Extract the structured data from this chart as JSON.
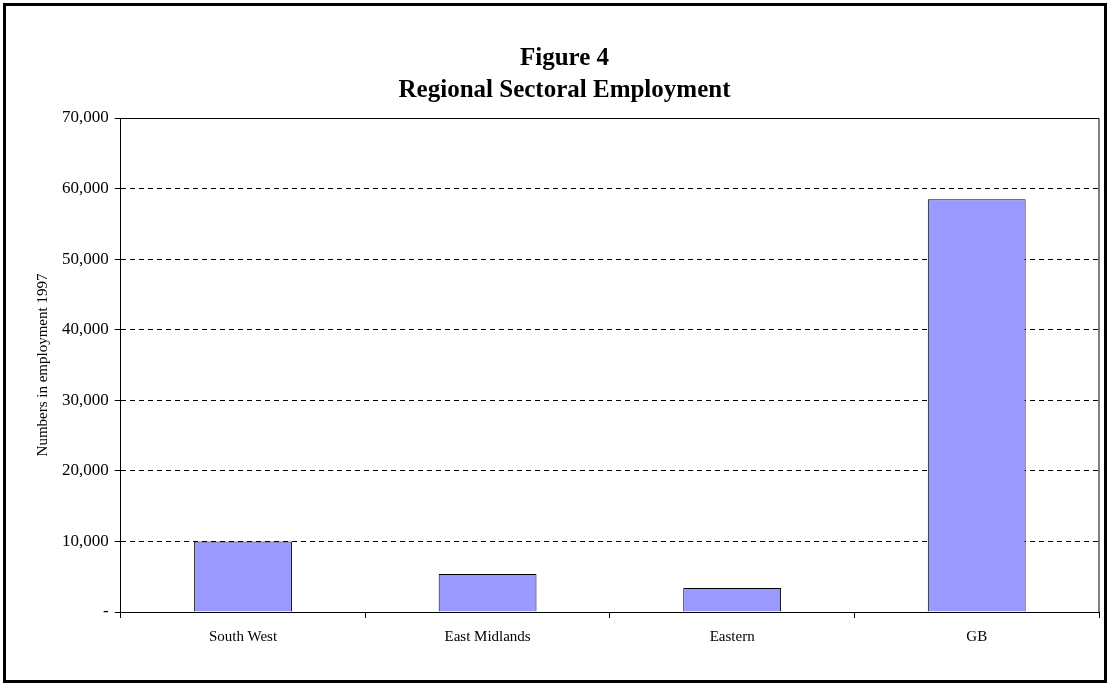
{
  "chart_data": {
    "type": "bar",
    "title": "Figure 4",
    "subtitle": "Regional Sectoral Employment",
    "ylabel": "Numbers in employment 1997",
    "categories": [
      "South West",
      "East Midlands",
      "Eastern",
      "GB"
    ],
    "values": [
      10000,
      5400,
      3400,
      58500
    ],
    "color": "#9999ff",
    "ylim": [
      0,
      70000
    ],
    "yticks": [
      {
        "value": 0,
        "label": "-"
      },
      {
        "value": 10000,
        "label": "10,000"
      },
      {
        "value": 20000,
        "label": "20,000"
      },
      {
        "value": 30000,
        "label": "30,000"
      },
      {
        "value": 40000,
        "label": "40,000"
      },
      {
        "value": 50000,
        "label": "50,000"
      },
      {
        "value": 60000,
        "label": "60,000"
      },
      {
        "value": 70000,
        "label": "70,000"
      }
    ],
    "grid": "y",
    "legend": false
  }
}
